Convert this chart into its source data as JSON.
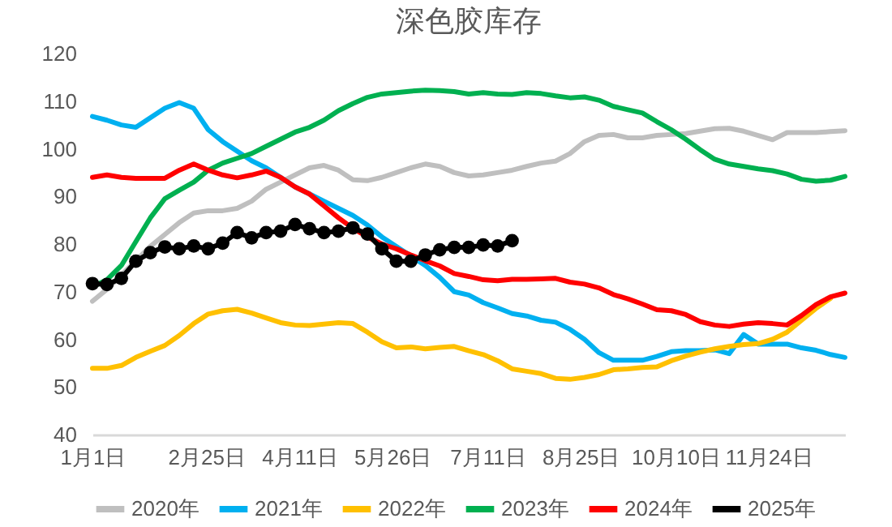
{
  "chart_data": {
    "type": "line",
    "title": "深色胶库存",
    "x": [
      "--01-01",
      "--01-08",
      "--01-15",
      "--01-22",
      "--01-29",
      "--02-05",
      "--02-12",
      "--02-19",
      "--02-26",
      "--03-05",
      "--03-12",
      "--03-19",
      "--03-26",
      "--04-02",
      "--04-09",
      "--04-16",
      "--04-23",
      "--04-30",
      "--05-07",
      "--05-14",
      "--05-21",
      "--05-28",
      "--06-04",
      "--06-11",
      "--06-18",
      "--06-25",
      "--07-02",
      "--07-09",
      "--07-16",
      "--07-23",
      "--07-30",
      "--08-06",
      "--08-13",
      "--08-20",
      "--08-27",
      "--09-03",
      "--09-10",
      "--09-17",
      "--09-24",
      "--10-01",
      "--10-08",
      "--10-15",
      "--10-22",
      "--10-29",
      "--11-05",
      "--11-12",
      "--11-19",
      "--11-26",
      "--12-03",
      "--12-10",
      "--12-17",
      "--12-24",
      "--12-31"
    ],
    "series": [
      {
        "name": "2020年",
        "color": "#bfbfbf",
        "values": [
          68,
          70.5,
          73.5,
          76.5,
          79.5,
          82,
          84.5,
          86.5,
          87,
          87,
          87.5,
          89,
          91.5,
          93,
          94.5,
          96,
          96.5,
          95.5,
          93.5,
          93.3,
          94,
          95,
          96,
          96.8,
          96.3,
          95,
          94.3,
          94.5,
          95,
          95.5,
          96.3,
          97,
          97.4,
          99,
          101.5,
          102.8,
          103,
          102.3,
          102.3,
          102.8,
          103,
          103.2,
          103.7,
          104.2,
          104.3,
          103.7,
          102.8,
          101.9,
          103.4,
          103.4,
          103.4,
          103.6,
          103.8
        ]
      },
      {
        "name": "2021年",
        "color": "#00b0f0",
        "values": [
          106.8,
          106,
          105,
          104.5,
          106.5,
          108.5,
          109.7,
          108.5,
          104,
          101.5,
          99.5,
          97.5,
          96,
          94,
          92,
          90.5,
          89,
          87.5,
          86,
          84,
          81.5,
          79.5,
          77.5,
          75.5,
          73,
          70,
          69.3,
          67.7,
          66.6,
          65.4,
          64.9,
          64,
          63.6,
          62.1,
          60,
          57.2,
          55.6,
          55.6,
          55.6,
          56.4,
          57.4,
          57.6,
          57.6,
          57.8,
          57,
          61,
          59,
          59,
          59,
          58.2,
          57.7,
          56.8,
          56.2
        ]
      },
      {
        "name": "2022年",
        "color": "#ffc000",
        "values": [
          53.9,
          53.9,
          54.5,
          56.2,
          57.5,
          58.7,
          60.8,
          63.3,
          65.3,
          66,
          66.3,
          65.5,
          64.5,
          63.5,
          63,
          62.9,
          63.2,
          63.5,
          63.3,
          61.5,
          59.5,
          58.2,
          58.4,
          58,
          58.3,
          58.5,
          57.6,
          56.8,
          55.5,
          53.8,
          53.3,
          52.8,
          51.8,
          51.6,
          52,
          52.6,
          53.6,
          53.8,
          54.1,
          54.2,
          55.5,
          56.5,
          57.3,
          58,
          58.5,
          58.9,
          59.1,
          60,
          61.5,
          64,
          66.5,
          68.6,
          null
        ]
      },
      {
        "name": "2023年",
        "color": "#00b050",
        "values": [
          71,
          72.5,
          75.5,
          80.5,
          85.5,
          89.5,
          91.3,
          93,
          95.5,
          97,
          98,
          99,
          100.5,
          102,
          103.5,
          104.5,
          106,
          108,
          109.5,
          110.8,
          111.5,
          111.8,
          112.1,
          112.3,
          112.2,
          112,
          111.5,
          111.8,
          111.5,
          111.4,
          111.8,
          111.6,
          111.1,
          110.7,
          110.9,
          110.2,
          108.9,
          108.2,
          107.5,
          105.7,
          104,
          102,
          99.8,
          97.8,
          96.8,
          96.3,
          95.8,
          95.4,
          94.7,
          93.6,
          93.2,
          93.4,
          94.2
        ]
      },
      {
        "name": "2024年",
        "color": "#ff0000",
        "values": [
          94,
          94.5,
          94,
          93.8,
          93.8,
          93.8,
          95.5,
          96.8,
          95.5,
          94.5,
          93.9,
          94.5,
          95.3,
          94,
          92,
          90.5,
          88,
          85.5,
          83.3,
          81.5,
          80,
          79,
          77.7,
          76.5,
          75.4,
          73.8,
          73.2,
          72.5,
          72.3,
          72.6,
          72.6,
          72.7,
          72.8,
          72,
          71.6,
          70.8,
          69.4,
          68.5,
          67.4,
          66.2,
          66,
          65.2,
          63.7,
          63,
          62.7,
          63.2,
          63.5,
          63.3,
          63,
          65,
          67.3,
          68.9,
          69.7
        ]
      },
      {
        "name": "2025年",
        "color": "#000000",
        "marker": "circle",
        "values": [
          71.7,
          71.5,
          72.8,
          76.4,
          78.2,
          79.4,
          79,
          79.6,
          79,
          80.2,
          82.4,
          81.3,
          82.4,
          82.7,
          84.1,
          83.2,
          82.4,
          82.7,
          83.4,
          82.1,
          79,
          76.4,
          76.4,
          77.7,
          78.8,
          79.3,
          79.3,
          79.8,
          79.6,
          80.7,
          null,
          null,
          null,
          null,
          null,
          null,
          null,
          null,
          null,
          null,
          null,
          null,
          null,
          null,
          null,
          null,
          null,
          null,
          null,
          null,
          null,
          null,
          null
        ]
      }
    ],
    "xlim": [
      "--01-01",
      "--12-31"
    ],
    "xticks": [
      {
        "value": "--01-01",
        "label": "1月1日"
      },
      {
        "value": "--02-25",
        "label": "2月25日"
      },
      {
        "value": "--04-11",
        "label": "4月11日"
      },
      {
        "value": "--05-26",
        "label": "5月26日"
      },
      {
        "value": "--07-11",
        "label": "7月11日"
      },
      {
        "value": "--08-25",
        "label": "8月25日"
      },
      {
        "value": "--10-10",
        "label": "10月10日"
      },
      {
        "value": "--11-24",
        "label": "11月24日"
      }
    ],
    "ylim": [
      40,
      120
    ],
    "yticks": [
      40,
      50,
      60,
      70,
      80,
      90,
      100,
      110,
      120
    ],
    "grid": false,
    "legend": "bottom",
    "marker": "none",
    "line_style": "solid"
  }
}
